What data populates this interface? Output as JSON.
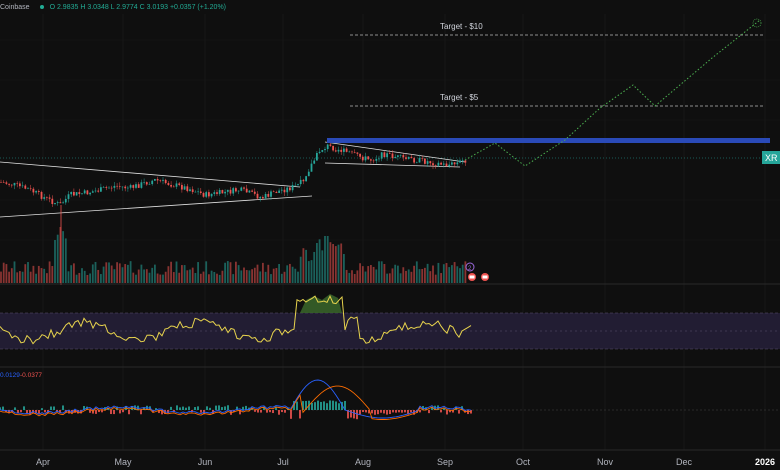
{
  "header": {
    "exchange": "Coinbase",
    "ohlc": "O 2.9835 H 3.0348 L 2.9774 C 3.0193 +0.0357 (+1.20%)"
  },
  "annotations": {
    "target_10": "Target - $10",
    "target_5": "Target - $5",
    "price_label": "XR"
  },
  "macd": {
    "values_label": "0.0129",
    "values_label2": "-0.0377"
  },
  "x_axis": {
    "labels": [
      "Apr",
      "May",
      "Jun",
      "Jul",
      "Aug",
      "Sep",
      "Oct",
      "Nov",
      "Dec",
      "2026"
    ]
  },
  "colors": {
    "bg": "#0f0f0f",
    "up": "#26a69a",
    "down": "#ef5350",
    "resistance": "#2a4ab8",
    "projection": "#4caf50",
    "rsi": "#e8d44d",
    "rsi_band": "#221d33",
    "macd_line": "#2962ff",
    "signal_line": "#ff6d00"
  }
}
